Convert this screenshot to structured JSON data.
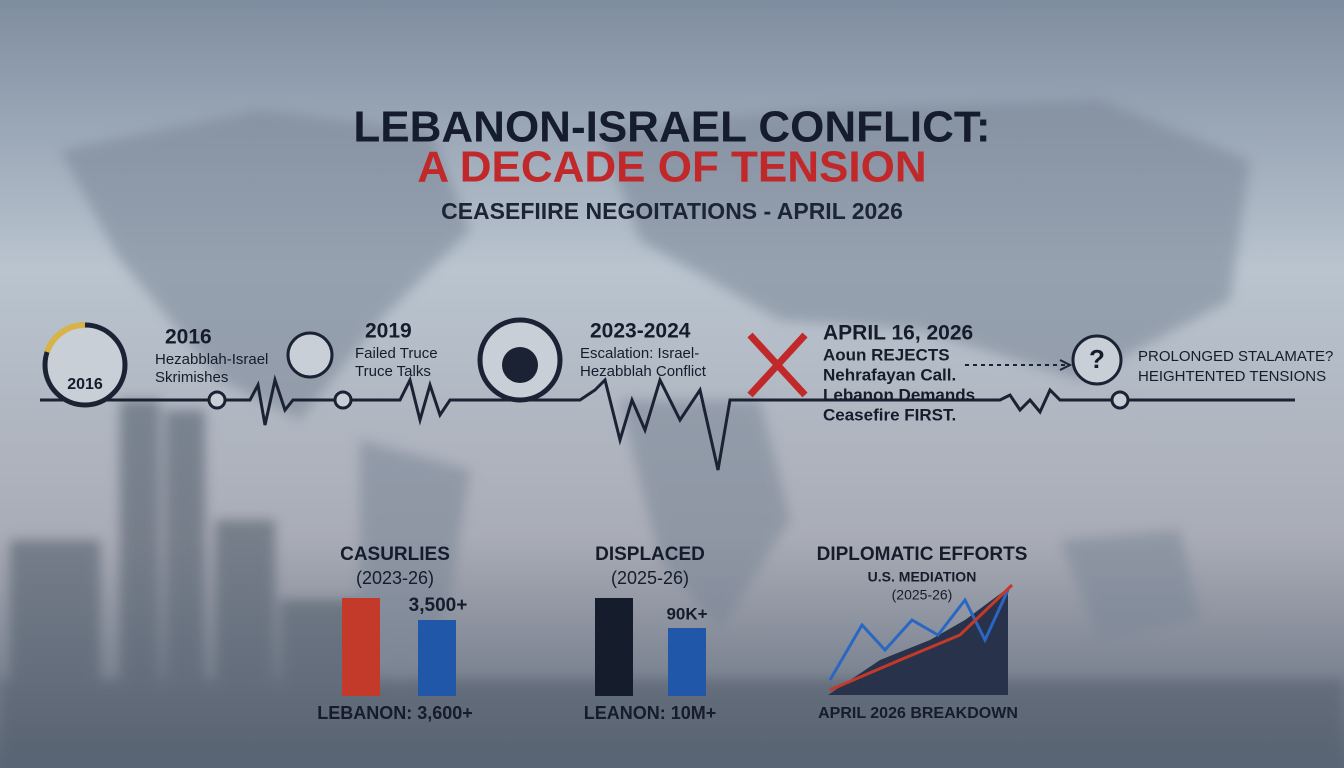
{
  "header": {
    "title": "LEBANON-ISRAEL CONFLICT:",
    "title_accent": "A DECADE OF TENSION",
    "subtitle": "CEASEFIIRE NEGOITATIONS - APRIL 2026"
  },
  "timeline": {
    "badge": "2016",
    "events": [
      {
        "date": "2016",
        "lines": [
          "Hezabblah-Israel",
          "Skrimishes"
        ]
      },
      {
        "date": "2019",
        "lines": [
          "Failed Truce",
          "Truce Talks"
        ]
      },
      {
        "date": "2023-2024",
        "lines": [
          "Escalation: Israel-",
          "Hezabblah Conflict"
        ]
      },
      {
        "date": "APRIL 16, 2026",
        "lines": [
          "Aoun REJECTS",
          "Nehrafayan Call.",
          "Lebanon Demands",
          "Ceasefire FIRST."
        ]
      },
      {
        "date": null,
        "lines": [
          "PROLONGED STALAMATE?",
          "HEIGHTENTED TENSIONS"
        ]
      }
    ]
  },
  "panels": {
    "casualties": {
      "title": "CASURLIES",
      "period": "(2023-26)",
      "figure": "3,500+",
      "caption": "LEBANON: 3,600+"
    },
    "displaced": {
      "title": "DISPLACED",
      "period": "(2025-26)",
      "figure": "90K+",
      "caption": "LEANON: 10M+"
    },
    "diplomatic": {
      "title": "DIPLOMATIC EFFORTS",
      "subtitle": "U.S. MEDIATION",
      "period": "(2025-26)",
      "caption": "APRIL 2026 BREAKDOWN"
    }
  }
}
